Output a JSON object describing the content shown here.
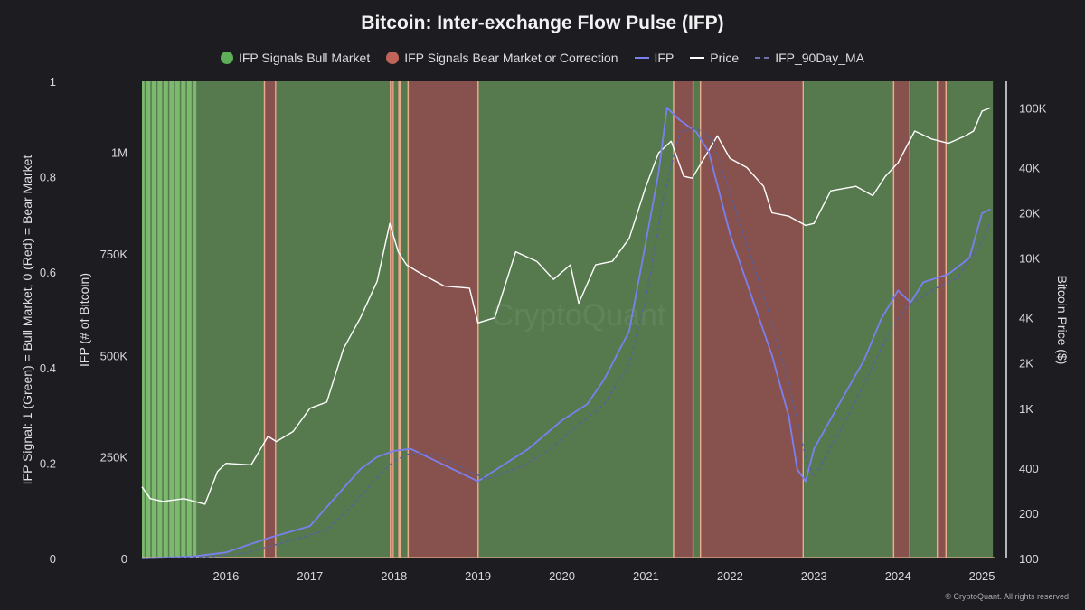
{
  "chart_data": {
    "type": "line",
    "title": "Bitcoin: Inter-exchange Flow Pulse (IFP)",
    "legend": [
      {
        "label": "IFP Signals Bull Market",
        "kind": "dot",
        "color": "#5fae58"
      },
      {
        "label": "IFP Signals Bear Market or Correction",
        "kind": "dot",
        "color": "#c0645a"
      },
      {
        "label": "IFP",
        "kind": "line",
        "color": "#7b7ff0"
      },
      {
        "label": "Price",
        "kind": "line",
        "color": "#ffffff"
      },
      {
        "label": "IFP_90Day_MA",
        "kind": "dash",
        "color": "#6f6fae"
      }
    ],
    "legend_position": "top",
    "x_ticks": [
      "2016",
      "2017",
      "2018",
      "2019",
      "2020",
      "2021",
      "2022",
      "2023",
      "2024",
      "2025"
    ],
    "xlim": [
      2015.0,
      2025.15
    ],
    "signal_axis": {
      "label": "IFP Signal: 1 (Green) = Bull Market, 0 (Red) = Bear Market",
      "ticks": [
        "0",
        "0.2",
        "0.4",
        "0.6",
        "0.8",
        "1"
      ],
      "range": [
        0,
        1
      ]
    },
    "ifp_axis": {
      "label": "IFP (# of Bitcoin)",
      "ticks": [
        {
          "v": 0,
          "t": "0"
        },
        {
          "v": 250000,
          "t": "250K"
        },
        {
          "v": 500000,
          "t": "500K"
        },
        {
          "v": 750000,
          "t": "750K"
        },
        {
          "v": 1000000,
          "t": "1M"
        }
      ],
      "range": [
        0,
        1175000
      ]
    },
    "price_axis": {
      "label": "Bitcoin Price ($)",
      "scale": "log",
      "ticks": [
        {
          "v": 100,
          "t": "100"
        },
        {
          "v": 200,
          "t": "200"
        },
        {
          "v": 400,
          "t": "400"
        },
        {
          "v": 1000,
          "t": "1K"
        },
        {
          "v": 2000,
          "t": "2K"
        },
        {
          "v": 4000,
          "t": "4K"
        },
        {
          "v": 10000,
          "t": "10K"
        },
        {
          "v": 20000,
          "t": "20K"
        },
        {
          "v": 40000,
          "t": "40K"
        },
        {
          "v": 100000,
          "t": "100K"
        }
      ],
      "range": [
        100,
        150000
      ]
    },
    "colors": {
      "bull": "#567a4e",
      "bull_light": "#7db86f",
      "bear": "#87524e",
      "edge": "#e8ad8c",
      "background": "#1c1c21"
    },
    "signal_bands": [
      {
        "from": 2015.0,
        "to": 2015.65,
        "signal": "bull_light"
      },
      {
        "from": 2015.65,
        "to": 2016.45,
        "signal": "bull"
      },
      {
        "from": 2016.45,
        "to": 2016.6,
        "signal": "bear"
      },
      {
        "from": 2016.6,
        "to": 2017.95,
        "signal": "bull"
      },
      {
        "from": 2017.95,
        "to": 2018.0,
        "signal": "bear"
      },
      {
        "from": 2018.0,
        "to": 2018.05,
        "signal": "bull"
      },
      {
        "from": 2018.05,
        "to": 2018.08,
        "signal": "bear"
      },
      {
        "from": 2018.08,
        "to": 2018.16,
        "signal": "bull"
      },
      {
        "from": 2018.16,
        "to": 2019.01,
        "signal": "bear"
      },
      {
        "from": 2019.01,
        "to": 2021.32,
        "signal": "bull"
      },
      {
        "from": 2021.32,
        "to": 2021.57,
        "signal": "bear"
      },
      {
        "from": 2021.57,
        "to": 2021.64,
        "signal": "bull"
      },
      {
        "from": 2021.64,
        "to": 2022.88,
        "signal": "bear"
      },
      {
        "from": 2022.88,
        "to": 2023.94,
        "signal": "bull"
      },
      {
        "from": 2023.94,
        "to": 2024.15,
        "signal": "bear"
      },
      {
        "from": 2024.15,
        "to": 2024.46,
        "signal": "bull"
      },
      {
        "from": 2024.46,
        "to": 2024.58,
        "signal": "bear"
      },
      {
        "from": 2024.58,
        "to": 2025.13,
        "signal": "bull"
      }
    ],
    "series": [
      {
        "name": "Price",
        "axis": "price",
        "x": [
          2015.0,
          2015.1,
          2015.25,
          2015.5,
          2015.75,
          2015.9,
          2016.0,
          2016.3,
          2016.5,
          2016.6,
          2016.8,
          2017.0,
          2017.2,
          2017.4,
          2017.6,
          2017.8,
          2017.95,
          2018.05,
          2018.15,
          2018.3,
          2018.6,
          2018.9,
          2019.0,
          2019.2,
          2019.45,
          2019.7,
          2019.9,
          2020.1,
          2020.2,
          2020.4,
          2020.6,
          2020.8,
          2021.0,
          2021.15,
          2021.3,
          2021.45,
          2021.55,
          2021.7,
          2021.85,
          2022.0,
          2022.2,
          2022.4,
          2022.5,
          2022.7,
          2022.9,
          2023.0,
          2023.2,
          2023.5,
          2023.7,
          2023.85,
          2024.0,
          2024.2,
          2024.4,
          2024.6,
          2024.8,
          2024.9,
          2025.0,
          2025.1
        ],
        "values": [
          300,
          250,
          240,
          250,
          230,
          380,
          430,
          420,
          650,
          600,
          700,
          1000,
          1100,
          2500,
          4000,
          7000,
          17000,
          11000,
          9000,
          8000,
          6500,
          6300,
          3700,
          4000,
          11000,
          9500,
          7200,
          9000,
          5000,
          9000,
          9500,
          13500,
          30000,
          50000,
          60000,
          35000,
          34000,
          47000,
          65000,
          46000,
          40000,
          30000,
          20000,
          19000,
          16500,
          17000,
          28000,
          30000,
          26000,
          35000,
          43000,
          70000,
          62000,
          58000,
          65000,
          70000,
          95000,
          100000
        ]
      },
      {
        "name": "IFP",
        "axis": "ifp",
        "x": [
          2015.0,
          2015.6,
          2016.0,
          2016.5,
          2017.0,
          2017.3,
          2017.6,
          2017.8,
          2018.0,
          2018.2,
          2018.5,
          2019.0,
          2019.3,
          2019.6,
          2020.0,
          2020.3,
          2020.5,
          2020.8,
          2021.0,
          2021.15,
          2021.25,
          2021.4,
          2021.6,
          2021.75,
          2022.0,
          2022.3,
          2022.5,
          2022.7,
          2022.8,
          2022.9,
          2023.0,
          2023.3,
          2023.6,
          2023.8,
          2024.0,
          2024.15,
          2024.3,
          2024.6,
          2024.85,
          2025.0,
          2025.1
        ],
        "values": [
          0,
          5000,
          15000,
          50000,
          80000,
          150000,
          220000,
          250000,
          265000,
          270000,
          240000,
          190000,
          230000,
          270000,
          340000,
          380000,
          440000,
          560000,
          780000,
          950000,
          1110000,
          1080000,
          1050000,
          1000000,
          800000,
          620000,
          500000,
          350000,
          220000,
          190000,
          270000,
          380000,
          490000,
          590000,
          660000,
          630000,
          680000,
          700000,
          740000,
          850000,
          860000
        ]
      },
      {
        "name": "IFP_90Day_MA",
        "axis": "ifp",
        "x": [
          2015.0,
          2015.8,
          2016.2,
          2016.7,
          2017.2,
          2017.5,
          2017.8,
          2018.0,
          2018.2,
          2018.5,
          2018.8,
          2019.1,
          2019.5,
          2019.8,
          2020.2,
          2020.5,
          2020.8,
          2021.0,
          2021.2,
          2021.4,
          2021.6,
          2021.8,
          2022.0,
          2022.3,
          2022.5,
          2022.7,
          2022.9,
          2023.0,
          2023.3,
          2023.6,
          2023.9,
          2024.1,
          2024.4,
          2024.7,
          2025.0,
          2025.1
        ],
        "values": [
          0,
          4000,
          12000,
          40000,
          70000,
          130000,
          200000,
          240000,
          260000,
          255000,
          225000,
          195000,
          225000,
          260000,
          330000,
          380000,
          480000,
          640000,
          880000,
          1050000,
          1060000,
          1030000,
          900000,
          710000,
          580000,
          430000,
          250000,
          200000,
          310000,
          430000,
          560000,
          620000,
          660000,
          690000,
          780000,
          830000
        ]
      }
    ],
    "watermark": "CryptoQuant",
    "copyright": "© CryptoQuant. All rights reserved"
  }
}
